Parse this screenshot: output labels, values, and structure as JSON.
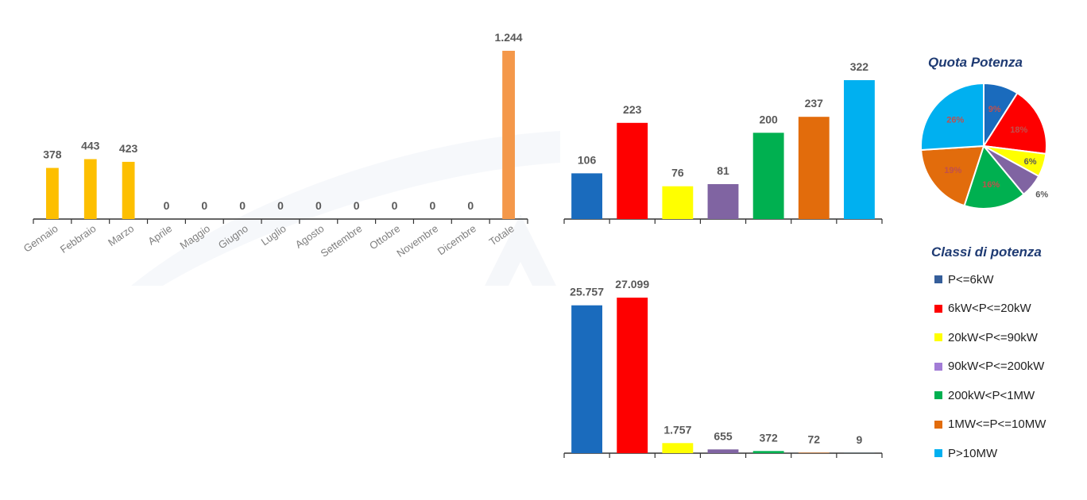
{
  "colors": {
    "monthly_bar": "#fdbf00",
    "total_bar": "#f4984a",
    "classes": [
      "#1a6bbd",
      "#fe0000",
      "#ffff00",
      "#8064a2",
      "#00b050",
      "#e26c0c",
      "#00b0f0"
    ],
    "legend_classes": [
      "#355e9a",
      "#fe0000",
      "#ffff00",
      "#a27cd6",
      "#00b050",
      "#e26c0c",
      "#00b0f0"
    ],
    "axis": "#333333",
    "label_text": "#595959",
    "tick_text": "#7f7f7f",
    "title_text": "#1f3b73"
  },
  "chart_data": [
    {
      "id": "monthly",
      "type": "bar",
      "categories": [
        "Gennaio",
        "Febbraio",
        "Marzo",
        "Aprile",
        "Maggio",
        "Giugno",
        "Luglio",
        "Agosto",
        "Settembre",
        "Ottobre",
        "Novembre",
        "Dicembre",
        "Totale"
      ],
      "values": [
        378,
        443,
        423,
        0,
        0,
        0,
        0,
        0,
        0,
        0,
        0,
        0,
        1244
      ],
      "value_labels": [
        "378",
        "443",
        "423",
        "0",
        "0",
        "0",
        "0",
        "0",
        "0",
        "0",
        "0",
        "0",
        "1.244"
      ],
      "ylim": [
        0,
        1244
      ],
      "grid": false
    },
    {
      "id": "count_by_class",
      "type": "bar",
      "categories": [
        "P<=6kW",
        "6kW<P<=20kW",
        "20kW<P<=90kW",
        "90kW<P<=200kW",
        "200kW<P<1MW",
        "1MW<=P<=10MW",
        "P>10MW"
      ],
      "values": [
        106,
        223,
        76,
        81,
        200,
        237,
        322
      ],
      "value_labels": [
        "106",
        "223",
        "76",
        "81",
        "200",
        "237",
        "322"
      ],
      "ylim": [
        0,
        322
      ],
      "grid": false
    },
    {
      "id": "power_by_class",
      "type": "bar",
      "categories": [
        "P<=6kW",
        "6kW<P<=20kW",
        "20kW<P<=90kW",
        "90kW<P<=200kW",
        "200kW<P<1MW",
        "1MW<=P<=10MW",
        "P>10MW"
      ],
      "values": [
        25757,
        27099,
        1757,
        655,
        372,
        72,
        9
      ],
      "value_labels": [
        "25.757",
        "27.099",
        "1.757",
        "655",
        "372",
        "72",
        "9"
      ],
      "ylim": [
        0,
        27099
      ],
      "grid": false
    },
    {
      "id": "share",
      "type": "pie",
      "title": "Quota Potenza",
      "categories": [
        "P<=6kW",
        "6kW<P<=20kW",
        "20kW<P<=90kW",
        "90kW<P<=200kW",
        "200kW<P<1MW",
        "1MW<=P<=10MW",
        "P>10MW"
      ],
      "values": [
        9,
        18,
        6,
        6,
        16,
        19,
        26
      ],
      "value_labels": [
        "9%",
        "18%",
        "6%",
        "6%",
        "16%",
        "19%",
        "26%"
      ]
    }
  ],
  "legend": {
    "title": "Classi di potenza",
    "items": [
      "P<=6kW",
      "6kW<P<=20kW",
      "20kW<P<=90kW",
      "90kW<P<=200kW",
      "200kW<P<1MW",
      "1MW<=P<=10MW",
      "P>10MW"
    ]
  }
}
